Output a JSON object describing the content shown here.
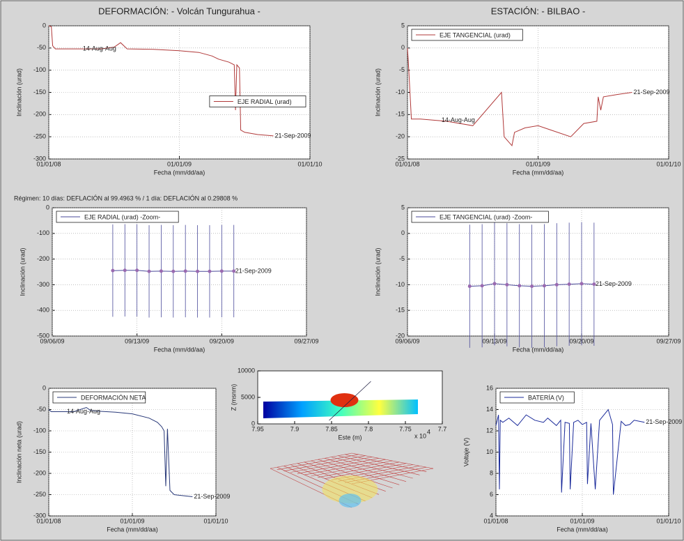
{
  "chart_data": [
    {
      "type": "line",
      "title": "DEFORMACIÓN: - Volcán Tungurahua -",
      "xlabel": "Fecha (mm/dd/aa)",
      "ylabel": "Inclinación (urad)",
      "x": [
        2008.0,
        2008.02,
        2008.03,
        2008.05,
        2008.2,
        2008.4,
        2008.5,
        2008.55,
        2008.6,
        2008.8,
        2009.0,
        2009.15,
        2009.25,
        2009.3,
        2009.38,
        2009.42,
        2009.43,
        2009.44,
        2009.46,
        2009.47,
        2009.5,
        2009.6,
        2009.72
      ],
      "series": [
        {
          "name": "EJE RADIAL (urad)",
          "color": "#b03838",
          "values": [
            0,
            -2,
            -45,
            -52,
            -52,
            -52,
            -48,
            -38,
            -52,
            -53,
            -56,
            -60,
            -68,
            -75,
            -82,
            -88,
            -190,
            -88,
            -95,
            -235,
            -240,
            -245,
            -248
          ]
        }
      ],
      "xlim": [
        2008,
        2010
      ],
      "xticks": [
        {
          "value": 2008,
          "label": "01/01/08"
        },
        {
          "value": 2009,
          "label": "01/01/09"
        },
        {
          "value": 2010,
          "label": "01/01/10"
        }
      ],
      "ylim": [
        -300,
        0
      ],
      "yticks": [
        0,
        -50,
        -100,
        -150,
        -200,
        -250,
        -300
      ],
      "grid": true,
      "legend": "center right",
      "annotations": [
        {
          "text": "14-Aug-Aug",
          "x": 2008.25,
          "y": -52
        },
        {
          "text": "21-Sep-2009",
          "x": 2009.72,
          "y": -248
        }
      ]
    },
    {
      "type": "line",
      "title": "ESTACIÓN: - BILBAO -",
      "xlabel": "Fecha (mm/dd/aa)",
      "ylabel": "Inclinación (urad)",
      "x": [
        2008.0,
        2008.01,
        2008.03,
        2008.1,
        2008.3,
        2008.5,
        2008.72,
        2008.74,
        2008.8,
        2008.82,
        2008.9,
        2009.0,
        2009.1,
        2009.25,
        2009.35,
        2009.45,
        2009.46,
        2009.48,
        2009.5,
        2009.6,
        2009.72
      ],
      "series": [
        {
          "name": "EJE TANGENCIAL (urad)",
          "color": "#b03838",
          "values": [
            0,
            -5,
            -16,
            -16,
            -16.5,
            -17.5,
            -10,
            -20,
            -22,
            -19,
            -18,
            -17.5,
            -18.5,
            -20,
            -17,
            -16.5,
            -11,
            -14,
            -11,
            -10.5,
            -10
          ]
        }
      ],
      "xlim": [
        2008,
        2010
      ],
      "xticks": [
        {
          "value": 2008,
          "label": "01/01/08"
        },
        {
          "value": 2009,
          "label": "01/01/09"
        },
        {
          "value": 2010,
          "label": "01/01/10"
        }
      ],
      "ylim": [
        -25,
        5
      ],
      "yticks": [
        5,
        0,
        -5,
        -10,
        -15,
        -20,
        -25
      ],
      "grid": true,
      "legend": "upper left",
      "annotations": [
        {
          "text": "14-Aug-Aug",
          "x": 2008.25,
          "y": -16.3
        },
        {
          "text": "21-Sep-2009",
          "x": 2009.72,
          "y": -10
        }
      ]
    },
    {
      "type": "errorbar",
      "title": "Régimen: 10 días: DEFLACIÓN al 99.4963 % / 1 día: DEFLACIÓN al 0.29808 %",
      "xlabel": "Fecha (mm/dd/aa)",
      "ylabel": "Inclinación (urad)",
      "x": [
        11,
        12,
        13,
        14,
        15,
        16,
        17,
        18,
        19,
        20,
        21
      ],
      "series": [
        {
          "name": "EJE RADIAL (urad) -Zoom-",
          "color": "#4a4a9a",
          "values": [
            -245,
            -244,
            -244,
            -248,
            -247,
            -248,
            -247,
            -248,
            -248,
            -247,
            -247
          ],
          "errors": [
            180,
            180,
            180,
            180,
            180,
            180,
            180,
            180,
            180,
            180,
            180
          ]
        }
      ],
      "xlim": [
        6,
        27
      ],
      "xticks": [
        {
          "value": 6,
          "label": "09/06/09"
        },
        {
          "value": 13,
          "label": "09/13/09"
        },
        {
          "value": 20,
          "label": "09/20/09"
        },
        {
          "value": 27,
          "label": "09/27/09"
        }
      ],
      "ylim": [
        -500,
        0
      ],
      "yticks": [
        0,
        -100,
        -200,
        -300,
        -400,
        -500
      ],
      "grid": true,
      "legend": "upper left",
      "annotations": [
        {
          "text": "21-Sep-2009",
          "x": 21,
          "y": -247
        }
      ]
    },
    {
      "type": "errorbar",
      "xlabel": "Fecha (mm/dd/aa)",
      "ylabel": "Inclinación (urad)",
      "x": [
        11,
        12,
        13,
        14,
        15,
        16,
        17,
        18,
        19,
        20,
        21
      ],
      "series": [
        {
          "name": "EJE TANGENCIAL (urad) -Zoom-",
          "color": "#4a4a9a",
          "values": [
            -10.3,
            -10.2,
            -9.8,
            -10,
            -10.2,
            -10.3,
            -10.2,
            -10,
            -9.9,
            -9.8,
            -9.9
          ],
          "errors": [
            12,
            12,
            12,
            12,
            12,
            12,
            12,
            12,
            12,
            12,
            12
          ]
        }
      ],
      "xlim": [
        6,
        27
      ],
      "xticks": [
        {
          "value": 6,
          "label": "09/06/09"
        },
        {
          "value": 13,
          "label": "09/13/09"
        },
        {
          "value": 20,
          "label": "09/20/09"
        },
        {
          "value": 27,
          "label": "09/27/09"
        }
      ],
      "ylim": [
        -20,
        5
      ],
      "yticks": [
        5,
        0,
        -5,
        -10,
        -15,
        -20
      ],
      "grid": true,
      "legend": "upper left",
      "annotations": [
        {
          "text": "21-Sep-2009",
          "x": 21,
          "y": -9.9
        }
      ]
    },
    {
      "type": "line",
      "xlabel": "Fecha (mm/dd/aa)",
      "ylabel": "Inclinación neta (urad)",
      "x": [
        2008.0,
        2008.03,
        2008.1,
        2008.3,
        2008.45,
        2008.5,
        2008.6,
        2008.8,
        2009.0,
        2009.2,
        2009.3,
        2009.35,
        2009.38,
        2009.4,
        2009.42,
        2009.45,
        2009.5,
        2009.72
      ],
      "series": [
        {
          "name": "DEFORMACIÓN NETA",
          "color": "#283878",
          "values": [
            -50,
            -55,
            -55,
            -55,
            -45,
            -52,
            -54,
            -56,
            -60,
            -70,
            -80,
            -90,
            -100,
            -230,
            -95,
            -240,
            -250,
            -255
          ]
        }
      ],
      "xlim": [
        2008,
        2010
      ],
      "xticks": [
        {
          "value": 2008,
          "label": "01/01/08"
        },
        {
          "value": 2009,
          "label": "01/01/09"
        },
        {
          "value": 2010,
          "label": "01/01/10"
        }
      ],
      "ylim": [
        -300,
        0
      ],
      "yticks": [
        0,
        -50,
        -100,
        -150,
        -200,
        -250,
        -300
      ],
      "grid": true,
      "legend": "upper left",
      "annotations": [
        {
          "text": "14-Aug-Aug",
          "x": 2008.2,
          "y": -55
        },
        {
          "text": "21-Sep-2009",
          "x": 2009.72,
          "y": -255
        }
      ]
    },
    {
      "type": "surface",
      "xlabel": "Este (m)",
      "ylabel": "Z (msnm)",
      "x_multiplier": "x 10",
      "x_exponent": "4",
      "xlim": [
        7.95,
        7.7
      ],
      "xticks": [
        7.95,
        7.9,
        7.85,
        7.8,
        7.75,
        7.7
      ],
      "ylim": [
        0,
        10000
      ],
      "yticks": [
        0,
        5000,
        10000
      ],
      "grid": false
    },
    {
      "type": "line",
      "xlabel": "Fecha (mm/dd/aa)",
      "ylabel": "Voltaje (V)",
      "x": [
        2008.0,
        2008.03,
        2008.04,
        2008.05,
        2008.08,
        2008.15,
        2008.25,
        2008.35,
        2008.45,
        2008.55,
        2008.6,
        2008.7,
        2008.75,
        2008.76,
        2008.8,
        2008.85,
        2008.86,
        2008.9,
        2008.95,
        2009.0,
        2009.05,
        2009.06,
        2009.1,
        2009.15,
        2009.2,
        2009.3,
        2009.35,
        2009.36,
        2009.45,
        2009.5,
        2009.55,
        2009.6,
        2009.72
      ],
      "series": [
        {
          "name": "BATERÍA (V)",
          "color": "#1a2a9a",
          "values": [
            12.5,
            13.5,
            6.5,
            13,
            12.8,
            13.2,
            12.5,
            13.5,
            13,
            12.8,
            13.2,
            12.5,
            13,
            6.2,
            12.8,
            12.7,
            6.5,
            12.8,
            13,
            12.6,
            12.8,
            7,
            12.7,
            6.5,
            13,
            14,
            12.6,
            6,
            12.9,
            12.5,
            12.6,
            13,
            12.8
          ]
        }
      ],
      "xlim": [
        2008,
        2010
      ],
      "xticks": [
        {
          "value": 2008,
          "label": "01/01/08"
        },
        {
          "value": 2009,
          "label": "01/01/09"
        },
        {
          "value": 2010,
          "label": "01/01/10"
        }
      ],
      "ylim": [
        4,
        16
      ],
      "yticks": [
        4,
        6,
        8,
        10,
        12,
        14,
        16
      ],
      "grid": true,
      "legend": "upper left",
      "annotations": [
        {
          "text": "21-Sep-2009",
          "x": 2009.72,
          "y": 12.8
        }
      ]
    }
  ]
}
